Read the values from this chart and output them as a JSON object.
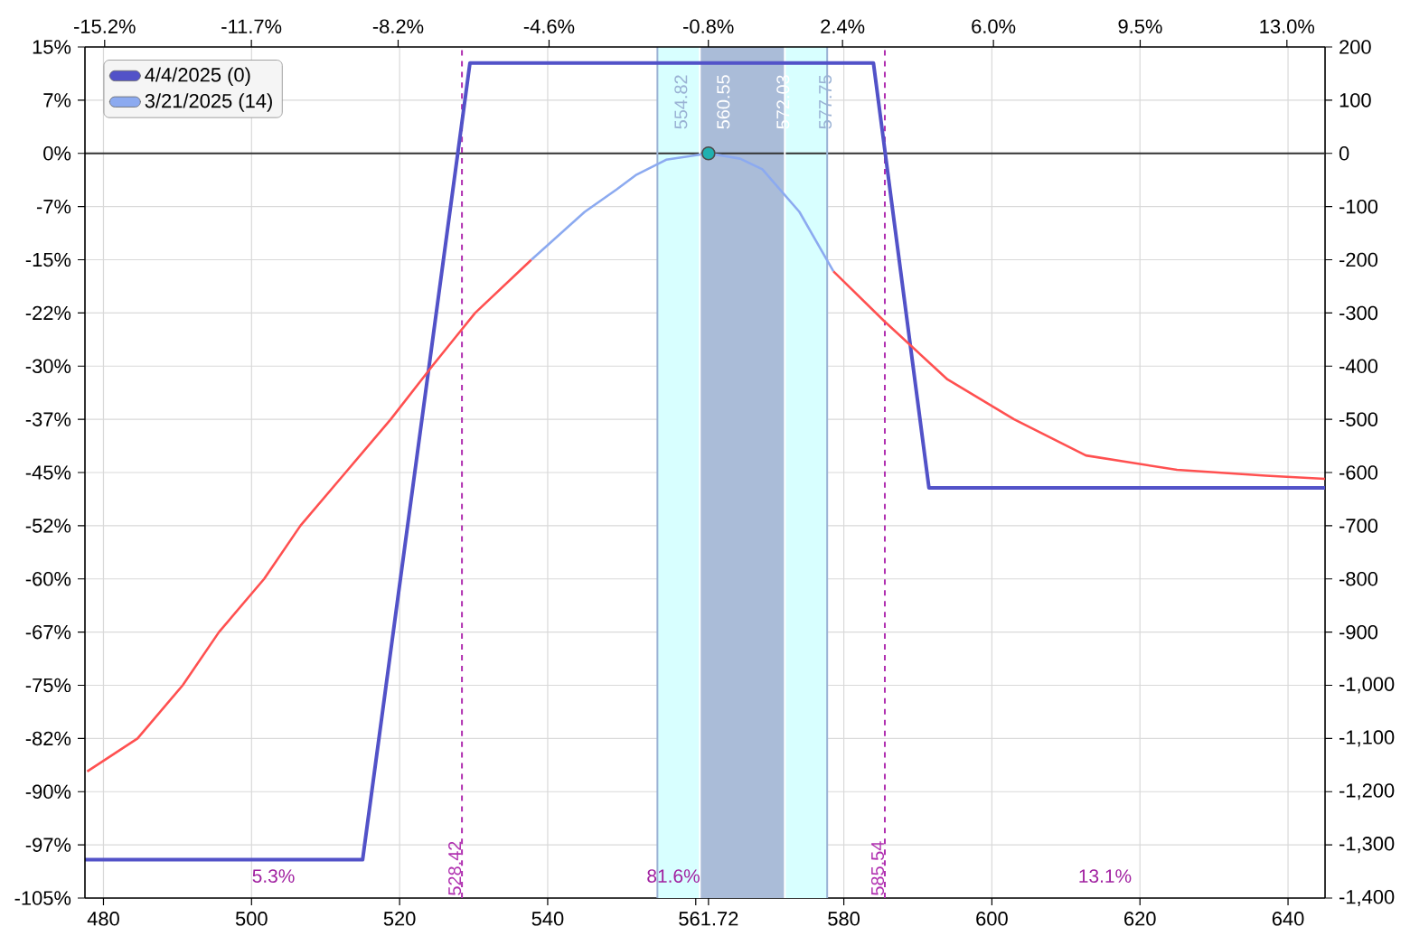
{
  "chart_data": {
    "type": "line",
    "xlim": [
      477.5,
      645
    ],
    "xticks": [
      480,
      500,
      520,
      540,
      {
        "value": 560,
        "label": null
      },
      561.72,
      580,
      600,
      620,
      640
    ],
    "x2lim": [
      -15.67,
      13.91
    ],
    "x2ticks": [
      {
        "value": -15.2,
        "label": "-15.2%"
      },
      {
        "value": -11.7,
        "label": "-11.7%"
      },
      {
        "value": -8.2,
        "label": "-8.2%"
      },
      {
        "value": -4.6,
        "label": "-4.6%"
      },
      {
        "value": -0.8,
        "label": "-0.8%"
      },
      {
        "value": 2.4,
        "label": "2.4%"
      },
      {
        "value": 6.0,
        "label": "6.0%"
      },
      {
        "value": 9.5,
        "label": "9.5%"
      },
      {
        "value": 13.0,
        "label": "13.0%"
      }
    ],
    "ylim": [
      -105,
      15
    ],
    "yticks": [
      {
        "value": 15,
        "label": "15%"
      },
      {
        "value": 7.5,
        "label": "7%"
      },
      {
        "value": 0,
        "label": "0%"
      },
      {
        "value": -7.5,
        "label": "-7%"
      },
      {
        "value": -15,
        "label": "-15%"
      },
      {
        "value": -22.5,
        "label": "-22%"
      },
      {
        "value": -30,
        "label": "-30%"
      },
      {
        "value": -37.5,
        "label": "-37%"
      },
      {
        "value": -45,
        "label": "-45%"
      },
      {
        "value": -52.5,
        "label": "-52%"
      },
      {
        "value": -60,
        "label": "-60%"
      },
      {
        "value": -67.5,
        "label": "-67%"
      },
      {
        "value": -75,
        "label": "-75%"
      },
      {
        "value": -82.5,
        "label": "-82%"
      },
      {
        "value": -90,
        "label": "-90%"
      },
      {
        "value": -97.5,
        "label": "-97%"
      },
      {
        "value": -105,
        "label": "-105%"
      }
    ],
    "y2lim": [
      -1400,
      200
    ],
    "y2ticks": [
      200,
      100,
      0,
      -100,
      -200,
      -300,
      -400,
      -500,
      -600,
      -700,
      -800,
      -900,
      {
        "value": -1000,
        "label": "-1,000"
      },
      {
        "value": -1100,
        "label": "-1,100"
      },
      {
        "value": -1200,
        "label": "-1,200"
      },
      {
        "value": -1300,
        "label": "-1,300"
      },
      {
        "value": -1400,
        "label": "-1,400"
      }
    ],
    "grid": true,
    "legend": "top left",
    "series": [
      {
        "name": "4/4/2025 (0)",
        "color": "#5252c8",
        "axis": "y2",
        "x": [
          477.5,
          515,
          529.5,
          584,
          591.5,
          645
        ],
        "values": [
          -1328,
          -1328,
          170,
          170,
          -629,
          -629
        ]
      },
      {
        "color": "#ff5050",
        "axis": "y2",
        "x": [
          477.8,
          484.6,
          490.7,
          495.6,
          501.7,
          506.6,
          512.7,
          518.8,
          524.4,
          530.2,
          537.8
        ],
        "values": [
          -1162,
          -1100,
          -1000,
          -900,
          -800,
          -700,
          -600,
          -500,
          -400,
          -300,
          -200
        ]
      },
      {
        "name": "3/21/2025 (14)",
        "color": "#8caaf0",
        "axis": "y2",
        "x": [
          537.8,
          545,
          549.3,
          552,
          556,
          561.72,
          566,
          569,
          574,
          578.6
        ],
        "values": [
          -200,
          -110,
          -68,
          -40,
          -12,
          0,
          -10,
          -30,
          -110,
          -222
        ]
      },
      {
        "color": "#ff5050",
        "axis": "y2",
        "x": [
          578.6,
          585.5,
          594,
          603,
          612.7,
          625,
          637,
          645
        ],
        "values": [
          -222,
          -316,
          -425,
          -500,
          -568,
          -595,
          -606,
          -612
        ]
      },
      {
        "type": "scatter",
        "marker": "circle",
        "color": "#20b0b0",
        "axis": "y2",
        "x": [
          561.72
        ],
        "values": [
          0
        ]
      }
    ],
    "bands": [
      {
        "axis": "x",
        "from": 554.82,
        "to": 577.75,
        "color": "#d8ffff"
      },
      {
        "axis": "x",
        "from": 560.55,
        "to": 572.03,
        "color": "#aabcd8"
      }
    ],
    "ref_lines": [
      {
        "axis": "y2",
        "value": 0,
        "color": "#333333",
        "line_style": "solid"
      },
      {
        "axis": "x",
        "value": 528.42,
        "label": "528.42",
        "color": "#b030b0",
        "line_style": "dashed"
      },
      {
        "axis": "x",
        "value": 585.54,
        "label": "585.54",
        "color": "#b030b0",
        "line_style": "dashed"
      },
      {
        "axis": "x",
        "value": 554.82,
        "label": "554.82",
        "color": "#9ab2d4",
        "line_style": "solid"
      },
      {
        "axis": "x",
        "value": 560.55,
        "label": "560.55",
        "color": "#ffffff",
        "line_style": "solid"
      },
      {
        "axis": "x",
        "value": 572.03,
        "label": "572.03",
        "color": "#ffffff",
        "line_style": "solid"
      },
      {
        "axis": "x",
        "value": 577.75,
        "label": "577.75",
        "color": "#9ab2d4",
        "line_style": "solid"
      }
    ],
    "annotations": [
      "5.3%",
      "81.6%",
      "13.1%"
    ]
  }
}
